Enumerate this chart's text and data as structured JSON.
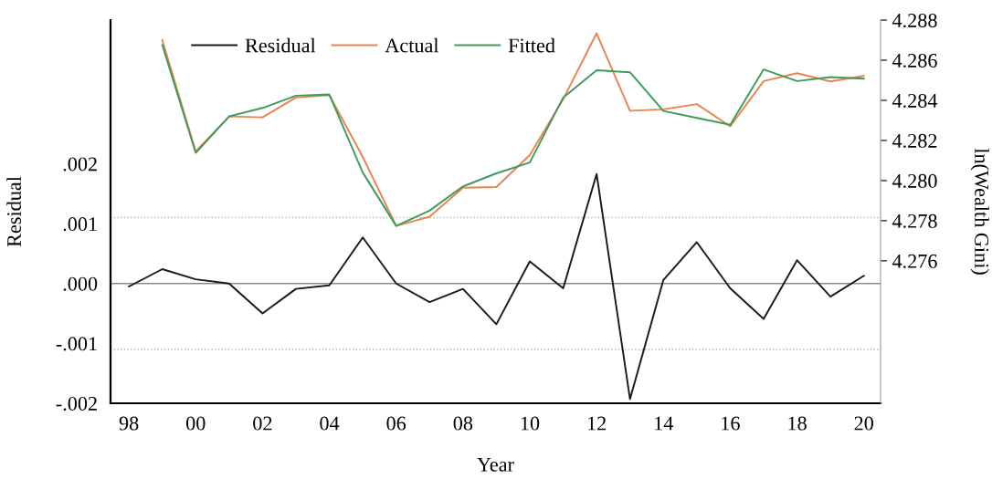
{
  "chart_data": {
    "type": "line",
    "xlabel": "Year",
    "ylabel": "Residual",
    "y2label": "ln(Wealth Gini)",
    "x": [
      1998,
      1999,
      2000,
      2001,
      2002,
      2003,
      2004,
      2005,
      2006,
      2007,
      2008,
      2009,
      2010,
      2011,
      2012,
      2013,
      2014,
      2015,
      2016,
      2017,
      2018,
      2019,
      2020
    ],
    "series": [
      {
        "name": "Residual",
        "color": "#1a1a1a",
        "values": [
          -5e-05,
          0.00024,
          7e-05,
          0.0,
          -0.0005,
          -9e-05,
          -3e-05,
          0.00077,
          0.0,
          -0.00031,
          -9e-05,
          -0.00068,
          0.00037,
          -8e-05,
          0.00183,
          -0.00193,
          6e-05,
          0.00069,
          -8e-05,
          -0.00059,
          0.00039,
          -0.00022,
          0.00013
        ]
      },
      {
        "name": "Actual",
        "color": "#e9844f",
        "axis": "y2",
        "x": [
          1999,
          2000,
          2001,
          2002,
          2003,
          2004,
          2005,
          2006,
          2007,
          2008,
          2009,
          2010,
          2011,
          2012,
          2013,
          2014,
          2015,
          2016,
          2017,
          2018,
          2019,
          2020
        ],
        "values": [
          4.287,
          4.28145,
          4.2832,
          4.28315,
          4.28414,
          4.28426,
          4.28118,
          4.27774,
          4.2782,
          4.27964,
          4.27968,
          4.28127,
          4.28406,
          4.28734,
          4.28348,
          4.28355,
          4.28381,
          4.2827,
          4.28496,
          4.28535,
          4.28494,
          4.28522
        ]
      },
      {
        "name": "Fitted",
        "color": "#3f9a5c",
        "axis": "y2",
        "x": [
          1999,
          2000,
          2001,
          2002,
          2003,
          2004,
          2005,
          2006,
          2007,
          2008,
          2009,
          2010,
          2011,
          2012,
          2013,
          2014,
          2015,
          2016,
          2017,
          2018,
          2019,
          2020
        ],
        "values": [
          4.28676,
          4.28138,
          4.2832,
          4.28362,
          4.28423,
          4.28429,
          4.2804,
          4.27774,
          4.2785,
          4.27971,
          4.28036,
          4.2809,
          4.28414,
          4.2855,
          4.2854,
          4.28347,
          4.28312,
          4.28278,
          4.28554,
          4.28496,
          4.28516,
          4.28508
        ]
      }
    ],
    "xlim": [
      1997.45,
      2020.5
    ],
    "xticks": [
      {
        "value": 1998,
        "label": "98"
      },
      {
        "value": 2000,
        "label": "00"
      },
      {
        "value": 2002,
        "label": "02"
      },
      {
        "value": 2004,
        "label": "04"
      },
      {
        "value": 2006,
        "label": "06"
      },
      {
        "value": 2008,
        "label": "08"
      },
      {
        "value": 2010,
        "label": "10"
      },
      {
        "value": 2012,
        "label": "12"
      },
      {
        "value": 2014,
        "label": "14"
      },
      {
        "value": 2016,
        "label": "16"
      },
      {
        "value": 2018,
        "label": "18"
      },
      {
        "value": 2020,
        "label": "20"
      }
    ],
    "ylim": [
      -0.002,
      0.0044
    ],
    "yticks": [
      {
        "value": -0.002,
        "label": "-.002"
      },
      {
        "value": -0.001,
        "label": "-.001"
      },
      {
        "value": 0,
        "label": ".000"
      },
      {
        "value": 0.001,
        "label": ".001"
      },
      {
        "value": 0.002,
        "label": ".002"
      }
    ],
    "y2lim": [
      4.2689,
      4.288
    ],
    "y2ticks": [
      4.276,
      4.278,
      {
        "value": 4.28,
        "label": "4.280"
      },
      4.282,
      4.284,
      4.286,
      4.288
    ],
    "ref_lines": [
      {
        "axis": "y",
        "value": 0,
        "color": "#8c8c8c",
        "line_style": "solid"
      },
      {
        "axis": "y",
        "value": 0.0011,
        "color": "#b4b4b4",
        "line_style": "dotted"
      },
      {
        "axis": "y",
        "value": -0.0011,
        "color": "#b4b4b4",
        "line_style": "dotted"
      }
    ],
    "legend": "top left",
    "line_style": "solid"
  }
}
